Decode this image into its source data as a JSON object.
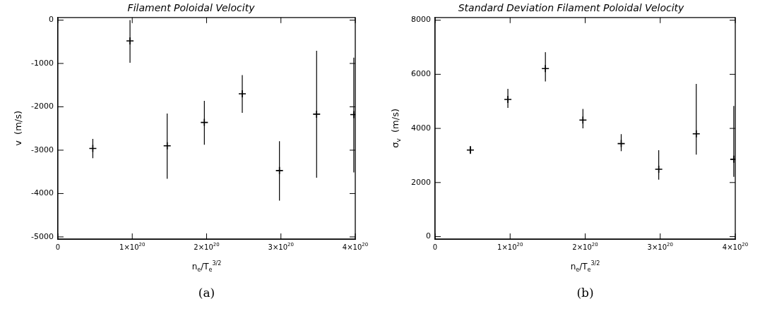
{
  "chart_data": [
    {
      "type": "scatter",
      "title": "Filament Poloidal Velocity",
      "xlabel": "n$_{e}$/T$_{e}$$^{3/2}$",
      "ylabel": "v  (m/s)",
      "annotations": [
        "(a)"
      ],
      "marker": "cross",
      "color": "#000000",
      "grid": false,
      "x": [
        4.7e+19,
        9.7e+19,
        1.47e+20,
        1.97e+20,
        2.48e+20,
        2.98e+20,
        3.48e+20,
        3.98e+20
      ],
      "values": [
        -2960,
        -480,
        -2900,
        -2360,
        -1700,
        -3470,
        -2170,
        -2180
      ],
      "errors": [
        [
          -3185,
          -2740
        ],
        [
          -985,
          0
        ],
        [
          -3658,
          -2154
        ],
        [
          -2874,
          -1861
        ],
        [
          -2137,
          -1267
        ],
        [
          -4165,
          -2794
        ],
        [
          -3635,
          -709
        ],
        [
          -3514,
          -865
        ]
      ],
      "xlim": [
        0,
        4e+20
      ],
      "xticks": [
        0,
        {
          "value": 1e+20,
          "label": "1×10$^{20}$"
        },
        {
          "value": 2e+20,
          "label": "2×10$^{20}$"
        },
        {
          "value": 3e+20,
          "label": "3×10$^{20}$"
        },
        {
          "value": 4e+20,
          "label": "4×10$^{20}$"
        }
      ],
      "ylim": [
        -5050,
        60
      ],
      "yticks": [
        -5000,
        -4000,
        -3000,
        -2000,
        -1000,
        0
      ]
    },
    {
      "type": "scatter",
      "title": "Standard Deviation Filament Poloidal Velocity",
      "xlabel": "n$_{e}$/T$_{e}$$^{3/2}$",
      "ylabel": "σ$_{v}$  (m/s)",
      "annotations": [
        "(b)"
      ],
      "marker": "cross",
      "color": "#000000",
      "grid": false,
      "x": [
        4.7e+19,
        9.7e+19,
        1.47e+20,
        1.97e+20,
        2.48e+20,
        2.98e+20,
        3.48e+20,
        3.98e+20
      ],
      "values": [
        3200,
        5070,
        6210,
        4310,
        3440,
        2490,
        3800,
        2860
      ],
      "errors": [
        [
          3058,
          3353
        ],
        [
          4758,
          5460
        ],
        [
          5737,
          6818
        ],
        [
          4000,
          4721
        ],
        [
          3159,
          3788
        ],
        [
          2106,
          3196
        ],
        [
          3030,
          5644
        ],
        [
          2208,
          4831
        ]
      ],
      "xlim": [
        0,
        4e+20
      ],
      "xticks": [
        0,
        {
          "value": 1e+20,
          "label": "1×10$^{20}$"
        },
        {
          "value": 2e+20,
          "label": "2×10$^{20}$"
        },
        {
          "value": 3e+20,
          "label": "3×10$^{20}$"
        },
        {
          "value": 4e+20,
          "label": "4×10$^{20}$"
        }
      ],
      "ylim": [
        -90,
        8100
      ],
      "yticks": [
        0,
        2000,
        4000,
        6000,
        8000
      ]
    }
  ]
}
